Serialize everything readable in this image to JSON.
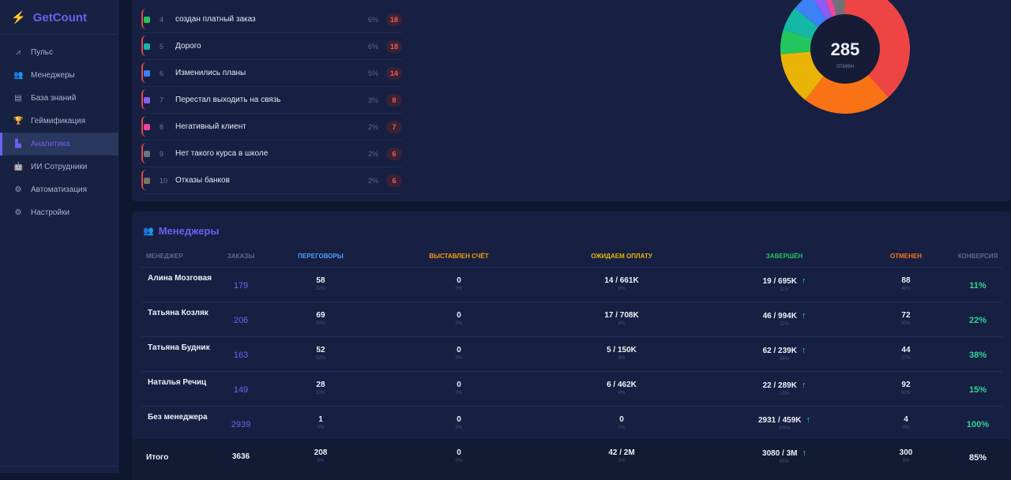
{
  "app": {
    "name": "GetCount",
    "logo_icon": "bolt-icon"
  },
  "sidebar": {
    "items": [
      {
        "label": "Пульс",
        "icon": "chart-line-icon",
        "glyph": "⩘"
      },
      {
        "label": "Менеджеры",
        "icon": "users-icon",
        "glyph": "👥"
      },
      {
        "label": "База знаний",
        "icon": "book-icon",
        "glyph": "▤"
      },
      {
        "label": "Геймификация",
        "icon": "trophy-icon",
        "glyph": "🏆"
      },
      {
        "label": "Аналитика",
        "icon": "analytics-icon",
        "glyph": "▙",
        "active": true
      },
      {
        "label": "ИИ Сотрудники",
        "icon": "robot-icon",
        "glyph": "🤖"
      },
      {
        "label": "Автоматизация",
        "icon": "cogs-icon",
        "glyph": "⚙"
      },
      {
        "label": "Настройки",
        "icon": "gear-icon",
        "glyph": "⚙"
      }
    ]
  },
  "reasons": {
    "items": [
      {
        "n": "4",
        "label": "создан платный заказ",
        "pct": "6%",
        "count": "18",
        "color": "#22c55e"
      },
      {
        "n": "5",
        "label": "Дорого",
        "pct": "6%",
        "count": "18",
        "color": "#14b8a6"
      },
      {
        "n": "6",
        "label": "Изменились планы",
        "pct": "5%",
        "count": "14",
        "color": "#3b82f6"
      },
      {
        "n": "7",
        "label": "Перестал выходить на связь",
        "pct": "3%",
        "count": "8",
        "color": "#8b5cf6"
      },
      {
        "n": "8",
        "label": "Негативный клиент",
        "pct": "2%",
        "count": "7",
        "color": "#ec4899"
      },
      {
        "n": "9",
        "label": "Нет такого курса в школе",
        "pct": "2%",
        "count": "6",
        "color": "#6b7280"
      },
      {
        "n": "10",
        "label": "Отказы банков",
        "pct": "2%",
        "count": "6",
        "color": "#78716c"
      }
    ]
  },
  "chart_data": {
    "type": "pie",
    "center_value": "285",
    "center_label": "отмен",
    "values": [
      38,
      22,
      13,
      6,
      6,
      5,
      3,
      2,
      2,
      2
    ],
    "colors": [
      "#ef4444",
      "#f97316",
      "#eab308",
      "#22c55e",
      "#14b8a6",
      "#3b82f6",
      "#8b5cf6",
      "#ec4899",
      "#6b7280",
      "#78716c"
    ]
  },
  "managers": {
    "title": "Менеджеры",
    "icon": "users-icon",
    "headers": [
      {
        "label": "МЕНЕДЖЕР",
        "color": "#5f6886"
      },
      {
        "label": "ЗАКАЗЫ",
        "color": "#5f6886"
      },
      {
        "label": "ПЕРЕГОВОРЫ",
        "color": "#4ea1f5"
      },
      {
        "label": "ВЫСТАВЛЕН СЧЁТ",
        "color": "#f59e0b"
      },
      {
        "label": "ОЖИДАЕМ ОПЛАТУ",
        "color": "#eab308"
      },
      {
        "label": "ЗАВЕРШЁН",
        "color": "#22c55e"
      },
      {
        "label": "ОТМЕНЕН",
        "color": "#f97316"
      },
      {
        "label": "КОНВЕРСИЯ",
        "color": "#5f6886"
      }
    ],
    "rows": [
      {
        "name": "Алина Мозговая",
        "orders": "179",
        "neg": "58",
        "neg_p": "32%",
        "inv": "0",
        "inv_p": "0%",
        "wait": "14 / 661K",
        "wait_p": "8%",
        "done": "19 / 695K",
        "done_p": "11%",
        "canc": "88",
        "canc_p": "49%",
        "conv": "11%"
      },
      {
        "name": "Татьяна Козляк",
        "orders": "206",
        "neg": "69",
        "neg_p": "33%",
        "inv": "0",
        "inv_p": "0%",
        "wait": "17 / 708K",
        "wait_p": "8%",
        "done": "46 / 994K",
        "done_p": "22%",
        "canc": "72",
        "canc_p": "35%",
        "conv": "22%"
      },
      {
        "name": "Татьяна Будник",
        "orders": "163",
        "neg": "52",
        "neg_p": "32%",
        "inv": "0",
        "inv_p": "0%",
        "wait": "5 / 150K",
        "wait_p": "3%",
        "done": "62 / 239K",
        "done_p": "38%",
        "canc": "44",
        "canc_p": "27%",
        "conv": "38%"
      },
      {
        "name": "Наталья Речиц",
        "orders": "149",
        "neg": "28",
        "neg_p": "19%",
        "inv": "0",
        "inv_p": "0%",
        "wait": "6 / 462K",
        "wait_p": "4%",
        "done": "22 / 289K",
        "done_p": "15%",
        "canc": "92",
        "canc_p": "62%",
        "conv": "15%"
      },
      {
        "name": "Без менеджера",
        "orders": "2939",
        "neg": "1",
        "neg_p": "0%",
        "inv": "0",
        "inv_p": "0%",
        "wait": "0",
        "wait_p": "0%",
        "done": "2931 / 459K",
        "done_p": "100%",
        "canc": "4",
        "canc_p": "0%",
        "conv": "100%"
      }
    ],
    "total": {
      "name": "Итого",
      "orders": "3636",
      "neg": "208",
      "neg_p": "6%",
      "inv": "0",
      "inv_p": "0%",
      "wait": "42 / 2M",
      "wait_p": "1%",
      "done": "3080 / 3M",
      "done_p": "85%",
      "canc": "300",
      "canc_p": "8%",
      "conv": "85%"
    }
  }
}
